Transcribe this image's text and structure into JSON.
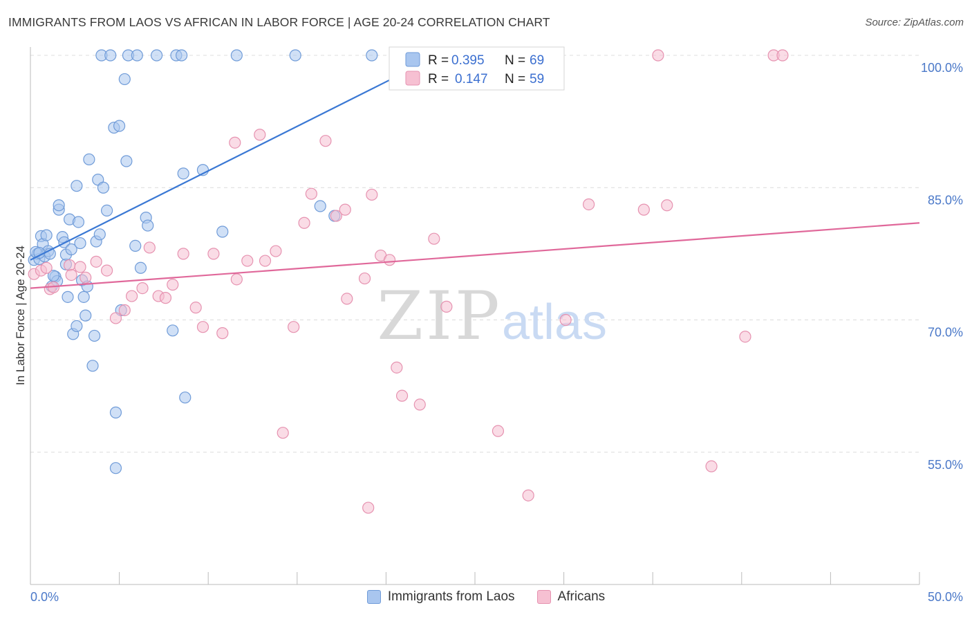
{
  "header": {
    "title": "IMMIGRANTS FROM LAOS VS AFRICAN IN LABOR FORCE | AGE 20-24 CORRELATION CHART",
    "source": "Source: ZipAtlas.com"
  },
  "watermark": {
    "zip": "ZIP",
    "atlas": "atlas"
  },
  "chart_data": {
    "type": "scatter",
    "title": "IMMIGRANTS FROM LAOS VS AFRICAN IN LABOR FORCE | AGE 20-24 CORRELATION CHART",
    "xlabel": "",
    "ylabel": "In Labor Force | Age 20-24",
    "xlim": [
      0,
      50
    ],
    "ylim": [
      41,
      102
    ],
    "x_tick_labels": [
      {
        "value": 0,
        "label": "0.0%"
      },
      {
        "value": 50,
        "label": "50.0%"
      }
    ],
    "y_tick_labels": [
      {
        "value": 100,
        "label": "100.0%"
      },
      {
        "value": 85,
        "label": "85.0%"
      },
      {
        "value": 70,
        "label": "70.0%"
      },
      {
        "value": 55,
        "label": "55.0%"
      }
    ],
    "x_minor_ticks": [
      0,
      5,
      10,
      15,
      20,
      25,
      30,
      35,
      40,
      45,
      50
    ],
    "grid": true,
    "legend_position": "top-center",
    "series": [
      {
        "name": "Immigrants from Laos",
        "color": "#a9c6ef",
        "edge": "#6f9bd8",
        "line_color": "#3a78d4",
        "R": "0.395",
        "N": "69",
        "trend": {
          "x0": 0,
          "y0": 76.8,
          "x1": 20.2,
          "y1": 97.2
        },
        "points": [
          [
            0.2,
            76.8
          ],
          [
            0.4,
            77.5
          ],
          [
            0.5,
            76.9
          ],
          [
            0.6,
            79.5
          ],
          [
            0.7,
            78.6
          ],
          [
            0.8,
            77.2
          ],
          [
            0.9,
            79.6
          ],
          [
            1.0,
            77.8
          ],
          [
            1.1,
            77.5
          ],
          [
            1.2,
            73.8
          ],
          [
            1.4,
            74.9
          ],
          [
            1.5,
            74.4
          ],
          [
            1.6,
            82.5
          ],
          [
            1.6,
            83.0
          ],
          [
            1.8,
            79.4
          ],
          [
            1.9,
            78.8
          ],
          [
            2.0,
            76.3
          ],
          [
            2.0,
            77.4
          ],
          [
            2.1,
            72.6
          ],
          [
            2.2,
            81.4
          ],
          [
            2.3,
            78.0
          ],
          [
            2.4,
            68.4
          ],
          [
            2.6,
            69.3
          ],
          [
            2.6,
            85.2
          ],
          [
            2.7,
            81.1
          ],
          [
            2.8,
            78.7
          ],
          [
            2.9,
            74.5
          ],
          [
            3.0,
            72.6
          ],
          [
            3.1,
            70.5
          ],
          [
            3.2,
            73.8
          ],
          [
            3.3,
            88.2
          ],
          [
            3.5,
            64.8
          ],
          [
            3.6,
            68.2
          ],
          [
            3.7,
            78.9
          ],
          [
            3.8,
            85.9
          ],
          [
            3.9,
            79.7
          ],
          [
            4.0,
            100.0
          ],
          [
            4.1,
            85.0
          ],
          [
            4.3,
            82.4
          ],
          [
            4.5,
            100.0
          ],
          [
            4.7,
            91.8
          ],
          [
            4.8,
            59.5
          ],
          [
            4.8,
            53.2
          ],
          [
            5.0,
            92.0
          ],
          [
            5.1,
            71.1
          ],
          [
            5.3,
            97.3
          ],
          [
            5.4,
            88.0
          ],
          [
            5.5,
            100.0
          ],
          [
            5.9,
            78.4
          ],
          [
            6.0,
            100.0
          ],
          [
            6.2,
            75.9
          ],
          [
            6.5,
            81.6
          ],
          [
            6.6,
            80.7
          ],
          [
            7.1,
            100.0
          ],
          [
            8.0,
            68.8
          ],
          [
            8.2,
            100.0
          ],
          [
            8.5,
            100.0
          ],
          [
            8.6,
            86.6
          ],
          [
            8.7,
            61.2
          ],
          [
            9.7,
            87.0
          ],
          [
            10.8,
            80.0
          ],
          [
            11.6,
            100.0
          ],
          [
            14.9,
            100.0
          ],
          [
            16.3,
            82.9
          ],
          [
            17.1,
            81.8
          ],
          [
            19.2,
            100.0
          ],
          [
            0.3,
            77.7
          ],
          [
            0.5,
            77.6
          ],
          [
            1.3,
            75.0
          ]
        ]
      },
      {
        "name": "Africans",
        "color": "#f6c0d2",
        "edge": "#e692b0",
        "line_color": "#e0689a",
        "R": "0.147",
        "N": "59",
        "trend": {
          "x0": 0,
          "y0": 73.6,
          "x1": 50,
          "y1": 81.0
        },
        "points": [
          [
            0.2,
            75.2
          ],
          [
            0.6,
            75.6
          ],
          [
            0.9,
            75.9
          ],
          [
            1.1,
            73.5
          ],
          [
            1.3,
            73.7
          ],
          [
            2.2,
            76.2
          ],
          [
            2.3,
            75.1
          ],
          [
            2.8,
            76.0
          ],
          [
            3.1,
            74.8
          ],
          [
            3.7,
            76.6
          ],
          [
            4.3,
            75.6
          ],
          [
            4.8,
            70.2
          ],
          [
            5.3,
            71.1
          ],
          [
            5.7,
            72.7
          ],
          [
            6.3,
            73.6
          ],
          [
            6.7,
            78.2
          ],
          [
            7.2,
            72.7
          ],
          [
            7.6,
            72.5
          ],
          [
            8.0,
            74.0
          ],
          [
            8.6,
            77.5
          ],
          [
            9.3,
            71.4
          ],
          [
            9.7,
            69.2
          ],
          [
            10.3,
            77.5
          ],
          [
            10.8,
            68.5
          ],
          [
            11.6,
            74.6
          ],
          [
            11.5,
            90.1
          ],
          [
            12.2,
            76.7
          ],
          [
            12.9,
            91.0
          ],
          [
            13.2,
            76.7
          ],
          [
            13.8,
            77.8
          ],
          [
            14.2,
            57.2
          ],
          [
            14.8,
            69.2
          ],
          [
            15.4,
            81.0
          ],
          [
            15.8,
            84.3
          ],
          [
            16.6,
            90.3
          ],
          [
            17.2,
            81.8
          ],
          [
            17.7,
            82.5
          ],
          [
            17.8,
            72.4
          ],
          [
            18.8,
            74.7
          ],
          [
            19.2,
            84.2
          ],
          [
            19.0,
            48.7
          ],
          [
            19.7,
            77.3
          ],
          [
            20.2,
            76.8
          ],
          [
            20.6,
            64.6
          ],
          [
            20.9,
            61.4
          ],
          [
            21.9,
            60.4
          ],
          [
            22.7,
            79.2
          ],
          [
            23.4,
            71.5
          ],
          [
            26.3,
            57.4
          ],
          [
            28.0,
            50.1
          ],
          [
            30.1,
            70.0
          ],
          [
            31.4,
            83.1
          ],
          [
            34.5,
            82.5
          ],
          [
            35.3,
            100.0
          ],
          [
            35.8,
            83.0
          ],
          [
            38.3,
            53.4
          ],
          [
            40.2,
            68.1
          ],
          [
            41.8,
            100.0
          ],
          [
            42.3,
            100.0
          ]
        ]
      }
    ]
  }
}
